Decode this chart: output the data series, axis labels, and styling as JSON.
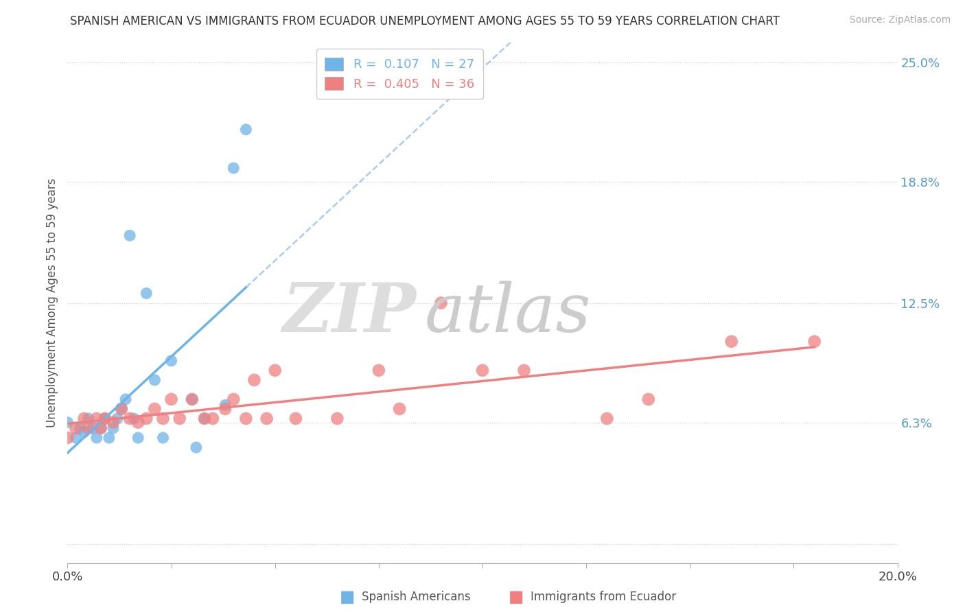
{
  "title": "SPANISH AMERICAN VS IMMIGRANTS FROM ECUADOR UNEMPLOYMENT AMONG AGES 55 TO 59 YEARS CORRELATION CHART",
  "source": "Source: ZipAtlas.com",
  "ylabel": "Unemployment Among Ages 55 to 59 years",
  "xlim": [
    0.0,
    0.2
  ],
  "ylim": [
    -0.01,
    0.26
  ],
  "ytick_positions": [
    0.0,
    0.063,
    0.125,
    0.188,
    0.25
  ],
  "yticklabels_right": [
    "",
    "6.3%",
    "12.5%",
    "18.8%",
    "25.0%"
  ],
  "blue_color": "#6EB4E8",
  "pink_color": "#F08080",
  "blue_label": "Spanish Americans",
  "pink_label": "Immigrants from Ecuador",
  "R_blue": 0.107,
  "N_blue": 27,
  "R_pink": 0.405,
  "N_pink": 36,
  "blue_scatter_x": [
    0.0,
    0.002,
    0.003,
    0.004,
    0.005,
    0.006,
    0.007,
    0.008,
    0.009,
    0.01,
    0.011,
    0.012,
    0.013,
    0.014,
    0.015,
    0.016,
    0.017,
    0.019,
    0.021,
    0.023,
    0.025,
    0.03,
    0.031,
    0.033,
    0.038,
    0.04,
    0.043
  ],
  "blue_scatter_y": [
    0.063,
    0.055,
    0.06,
    0.058,
    0.065,
    0.06,
    0.055,
    0.06,
    0.065,
    0.055,
    0.06,
    0.065,
    0.07,
    0.075,
    0.16,
    0.065,
    0.055,
    0.13,
    0.085,
    0.055,
    0.095,
    0.075,
    0.05,
    0.065,
    0.072,
    0.195,
    0.215
  ],
  "pink_scatter_x": [
    0.0,
    0.002,
    0.004,
    0.005,
    0.007,
    0.008,
    0.009,
    0.011,
    0.013,
    0.015,
    0.017,
    0.019,
    0.021,
    0.023,
    0.025,
    0.027,
    0.03,
    0.033,
    0.035,
    0.038,
    0.04,
    0.043,
    0.045,
    0.048,
    0.05,
    0.055,
    0.065,
    0.075,
    0.08,
    0.09,
    0.1,
    0.11,
    0.13,
    0.14,
    0.16,
    0.18
  ],
  "pink_scatter_y": [
    0.055,
    0.06,
    0.065,
    0.06,
    0.065,
    0.06,
    0.065,
    0.063,
    0.07,
    0.065,
    0.063,
    0.065,
    0.07,
    0.065,
    0.075,
    0.065,
    0.075,
    0.065,
    0.065,
    0.07,
    0.075,
    0.065,
    0.085,
    0.065,
    0.09,
    0.065,
    0.065,
    0.09,
    0.07,
    0.125,
    0.09,
    0.09,
    0.065,
    0.075,
    0.105,
    0.105
  ],
  "background_color": "#ffffff"
}
